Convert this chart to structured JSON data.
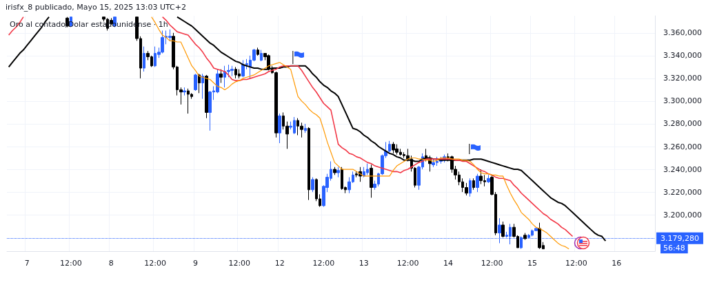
{
  "chart_data": {
    "type": "candlestick",
    "title": "Oro al contado/Dolar estadounidense · 1h",
    "subtitle": "irisfx_8 publicado, Mayo 15, 2025 13:03 UTC+2",
    "categories": [
      null,
      null,
      null,
      null,
      null,
      "7",
      null,
      null,
      null,
      null,
      null,
      null,
      null,
      null,
      null,
      null,
      null,
      "12:00",
      null,
      null,
      null,
      null,
      null,
      null,
      null,
      null,
      null,
      null,
      "8",
      null,
      null,
      null,
      null,
      null,
      null,
      null,
      null,
      null,
      null,
      null,
      "12:00",
      null,
      null,
      null,
      null,
      null,
      null,
      null,
      null,
      null,
      null,
      "9",
      null,
      null,
      null,
      null,
      null,
      null,
      null,
      null,
      null,
      null,
      null,
      "12:00",
      null,
      null,
      null,
      null,
      null,
      null,
      null,
      null,
      null,
      null,
      "12",
      null,
      null,
      null,
      null,
      null,
      null,
      null,
      null,
      null,
      null,
      null,
      "12:00",
      null,
      null,
      null,
      null,
      null,
      null,
      null,
      null,
      null,
      null,
      "13",
      null,
      null,
      null,
      null,
      null,
      null,
      null,
      null,
      null,
      null,
      null,
      "12:00",
      null,
      null,
      null,
      null,
      null,
      null,
      null,
      null,
      null,
      null,
      "14",
      null,
      null,
      null,
      null,
      null,
      null,
      null,
      null,
      null,
      null,
      null,
      "12:00",
      null,
      null,
      null,
      null,
      null,
      null,
      null,
      null,
      null,
      null,
      "15",
      null,
      null,
      null,
      null,
      null,
      null,
      null,
      null,
      null,
      null,
      null,
      "12:00",
      null,
      null,
      null,
      null,
      null,
      null,
      null,
      null,
      null,
      null,
      "16",
      null,
      null,
      null,
      null,
      null,
      null,
      null,
      null,
      null,
      null
    ],
    "ylim": [
      3168,
      3375
    ],
    "yticks": [
      {
        "value": 3200,
        "label": "3.200,000"
      },
      {
        "value": 3220,
        "label": "3.220,000"
      },
      {
        "value": 3240,
        "label": "3.240,000"
      },
      {
        "value": 3260,
        "label": "3.260,000"
      },
      {
        "value": 3280,
        "label": "3.280,000"
      },
      {
        "value": 3300,
        "label": "3.300,000"
      },
      {
        "value": 3320,
        "label": "3.320,000"
      },
      {
        "value": 3340,
        "label": "3.340,000"
      },
      {
        "value": 3360,
        "label": "3.360,000"
      }
    ],
    "grid": true,
    "marker": "none",
    "line_style": "solid",
    "series": [
      {
        "type": "candlestick",
        "ohlc": [
          null,
          null,
          null,
          null,
          null,
          null,
          null,
          null,
          null,
          null,
          null,
          null,
          null,
          null,
          null,
          null,
          [
            3373,
            3374,
            3365,
            3366
          ],
          [
            3366,
            3374,
            3365,
            3374
          ],
          null,
          null,
          null,
          null,
          null,
          null,
          null,
          null,
          [
            3374,
            3374,
            3370,
            3372
          ],
          [
            3372,
            3373,
            3362,
            3364
          ],
          [
            3371,
            3373,
            3367,
            3368
          ],
          [
            3366,
            3374,
            3365,
            3374
          ],
          null,
          null,
          null,
          null,
          null,
          [
            3374,
            3374,
            3353,
            3355
          ],
          [
            3355,
            3357,
            3320,
            3329
          ],
          [
            3329,
            3348,
            3326,
            3342
          ],
          [
            3342,
            3344,
            3336,
            3339
          ],
          [
            3339,
            3340,
            3330,
            3331
          ],
          [
            3331,
            3348,
            3330,
            3342
          ],
          [
            3341,
            3347,
            3338,
            3343
          ],
          [
            3343,
            3362,
            3342,
            3356
          ],
          [
            3356,
            3362,
            3350,
            3357
          ],
          [
            3356,
            3363,
            3353,
            3357
          ],
          [
            3357,
            3360,
            3328,
            3330
          ],
          [
            3330,
            3331,
            3305,
            3310
          ],
          [
            3310,
            3312,
            3297,
            3308
          ],
          [
            3308,
            3312,
            3305,
            3309
          ],
          [
            3309,
            3311,
            3289,
            3306
          ],
          [
            3306,
            3307,
            3302,
            3304
          ],
          [
            3310,
            3324,
            3309,
            3323
          ],
          [
            3323,
            3324,
            3307,
            3316
          ],
          [
            3316,
            3324,
            3302,
            3322
          ],
          [
            3322,
            3323,
            3285,
            3290
          ],
          [
            3290,
            3309,
            3274,
            3308
          ],
          [
            3308,
            3313,
            3301,
            3309
          ],
          [
            3308,
            3328,
            3307,
            3324
          ],
          [
            3324,
            3328,
            3316,
            3321
          ],
          [
            3321,
            3331,
            3312,
            3326
          ],
          [
            3326,
            3332,
            3321,
            3327
          ],
          [
            3327,
            3331,
            3322,
            3328
          ],
          [
            3328,
            3330,
            3320,
            3323
          ],
          [
            3324,
            3328,
            3320,
            3322
          ],
          [
            3322,
            3336,
            3321,
            3332
          ],
          [
            3332,
            3337,
            3328,
            3333
          ],
          [
            3330,
            3340,
            3320,
            3336
          ],
          [
            3336,
            3346,
            3335,
            3345
          ],
          [
            3345,
            3347,
            3340,
            3341
          ],
          [
            3336,
            3345,
            3335,
            3342
          ],
          [
            3342,
            3342,
            3336,
            3339
          ],
          [
            3340,
            3341,
            3327,
            3328
          ],
          [
            3328,
            3331,
            3324,
            3325
          ],
          [
            3325,
            3326,
            3268,
            3272
          ],
          [
            3272,
            3289,
            3263,
            3287
          ],
          [
            3287,
            3290,
            3275,
            3278
          ],
          [
            3278,
            3282,
            3258,
            3271
          ],
          [
            3277,
            3282,
            3275,
            3278
          ],
          [
            3272,
            3286,
            3271,
            3283
          ],
          [
            3283,
            3285,
            3270,
            3278
          ],
          [
            3278,
            3281,
            3268,
            3275
          ],
          [
            3274,
            3280,
            3272,
            3276
          ],
          [
            3276,
            3277,
            3213,
            3222
          ],
          [
            3222,
            3233,
            3220,
            3231
          ],
          [
            3231,
            3232,
            3212,
            3214
          ],
          [
            3214,
            3218,
            3207,
            3208
          ],
          [
            3208,
            3226,
            3207,
            3225
          ],
          [
            3224,
            3236,
            3220,
            3233
          ],
          [
            3232,
            3247,
            3230,
            3240
          ],
          [
            3240,
            3242,
            3235,
            3237
          ],
          [
            3237,
            3242,
            3233,
            3239
          ],
          [
            3240,
            3242,
            3222,
            3223
          ],
          [
            3224,
            3225,
            3219,
            3222
          ],
          [
            3222,
            3233,
            3219,
            3229
          ],
          [
            3229,
            3238,
            3228,
            3235
          ],
          [
            3236,
            3238,
            3233,
            3235
          ],
          [
            3238,
            3242,
            3229,
            3234
          ],
          [
            3234,
            3242,
            3233,
            3238
          ],
          [
            3237,
            3245,
            3235,
            3240
          ],
          [
            3241,
            3244,
            3215,
            3224
          ],
          [
            3224,
            3230,
            3222,
            3227
          ],
          [
            3227,
            3237,
            3225,
            3236
          ],
          [
            3236,
            3253,
            3235,
            3252
          ],
          [
            3252,
            3264,
            3250,
            3256
          ],
          [
            3256,
            3265,
            3255,
            3262
          ],
          [
            3262,
            3264,
            3254,
            3257
          ],
          [
            3258,
            3262,
            3253,
            3255
          ],
          [
            3255,
            3258,
            3252,
            3253
          ],
          [
            3253,
            3255,
            3250,
            3252
          ],
          [
            3252,
            3258,
            3247,
            3249
          ],
          [
            3249,
            3252,
            3238,
            3241
          ],
          [
            3241,
            3242,
            3224,
            3226
          ],
          [
            3226,
            3243,
            3222,
            3242
          ],
          [
            3242,
            3254,
            3240,
            3251
          ],
          [
            3252,
            3258,
            3247,
            3249
          ],
          [
            3249,
            3252,
            3238,
            3245
          ],
          [
            3244,
            3249,
            3242,
            3246
          ],
          [
            3246,
            3251,
            3243,
            3247
          ],
          [
            3247,
            3251,
            3245,
            3248
          ],
          [
            3248,
            3253,
            3246,
            3251
          ],
          [
            3251,
            3254,
            3247,
            3250
          ],
          [
            3251,
            3252,
            3237,
            3240
          ],
          [
            3240,
            3243,
            3231,
            3235
          ],
          [
            3235,
            3238,
            3226,
            3229
          ],
          [
            3229,
            3232,
            3220,
            3224
          ],
          [
            3224,
            3228,
            3217,
            3219
          ],
          [
            3219,
            3232,
            3216,
            3230
          ],
          [
            3230,
            3232,
            3222,
            3224
          ],
          [
            3224,
            3236,
            3220,
            3234
          ],
          [
            3234,
            3240,
            3227,
            3230
          ],
          [
            3230,
            3235,
            3225,
            3229
          ],
          [
            3229,
            3235,
            3228,
            3232
          ],
          [
            3233,
            3235,
            3217,
            3218
          ],
          [
            3218,
            3220,
            3182,
            3184
          ],
          [
            3184,
            3197,
            3175,
            3191
          ],
          [
            3191,
            3194,
            3180,
            3181
          ],
          [
            3181,
            3185,
            3180,
            3182
          ],
          [
            3181,
            3192,
            3174,
            3189
          ],
          [
            3189,
            3192,
            3180,
            3181
          ],
          [
            3181,
            3182,
            3171,
            3171
          ],
          [
            3171,
            3181,
            3170,
            3180
          ],
          [
            3182,
            3184,
            3178,
            3179
          ],
          [
            3180,
            3183,
            3179,
            3182
          ],
          [
            3182,
            3187,
            3181,
            3186
          ],
          [
            3186,
            3189,
            3186,
            3188
          ],
          [
            3188,
            3193,
            3170,
            3171
          ],
          [
            3173,
            3176,
            3170,
            3170
          ],
          null,
          null,
          null,
          null,
          null,
          null,
          null,
          null,
          null,
          null,
          null,
          null,
          null,
          null,
          null,
          null,
          null,
          null,
          null,
          null,
          null,
          null,
          null,
          null,
          null,
          null,
          null,
          null,
          null,
          null
        ],
        "colors": [
          null,
          null,
          null,
          null,
          null,
          null,
          null,
          null,
          null,
          null,
          null,
          null,
          null,
          null,
          null,
          null,
          "#000000",
          "#2962ff",
          null,
          null,
          null,
          null,
          null,
          null,
          null,
          null,
          "#000000",
          "#000000",
          "#000000",
          "#2962ff",
          null,
          null,
          null,
          null,
          null,
          "#000000",
          "#000000",
          "#2962ff",
          "#000000",
          "#000000",
          "#2962ff",
          "#2962ff",
          "#2962ff",
          "#2962ff",
          "#2962ff",
          "#000000",
          "#000000",
          "#000000",
          "#2962ff",
          "#000000",
          "#000000",
          "#2962ff",
          "#000000",
          "#2962ff",
          "#000000",
          "#2962ff",
          "#2962ff",
          "#2962ff",
          "#000000",
          "#2962ff",
          "#2962ff",
          "#2962ff",
          "#000000",
          "#000000",
          "#2962ff",
          "#2962ff",
          "#2962ff",
          "#2962ff",
          "#000000",
          "#2962ff",
          "#000000",
          "#000000",
          "#000000",
          "#000000",
          "#2962ff",
          "#000000",
          "#000000",
          "#2962ff",
          "#2962ff",
          "#000000",
          "#000000",
          "#2962ff",
          "#000000",
          "#2962ff",
          "#000000",
          "#000000",
          "#2962ff",
          "#2962ff",
          "#2962ff",
          "#000000",
          "#2962ff",
          "#000000",
          "#000000",
          "#2962ff",
          "#2962ff",
          "#000000",
          "#000000",
          "#2962ff",
          "#2962ff",
          "#000000",
          "#2962ff",
          "#2962ff",
          "#2962ff",
          "#2962ff",
          "#2962ff",
          "#000000",
          "#000000",
          "#000000",
          "#000000",
          "#000000",
          "#000000",
          "#000000",
          "#2962ff",
          "#2962ff",
          "#000000",
          "#000000",
          "#2962ff",
          "#2962ff",
          "#2962ff",
          "#2962ff",
          "#000000",
          "#000000",
          "#000000",
          "#000000",
          "#000000",
          "#000000",
          "#2962ff",
          "#000000",
          "#2962ff",
          "#000000",
          "#000000",
          "#2962ff",
          "#000000",
          "#000000",
          "#2962ff",
          "#000000",
          "#2962ff",
          "#2962ff",
          "#000000",
          "#000000",
          "#2962ff",
          "#000000",
          "#2962ff",
          "#2962ff",
          "#2962ff",
          "#000000",
          "#000000",
          null,
          null,
          null,
          null,
          null,
          null,
          null,
          null,
          null,
          null,
          null,
          null,
          null,
          null,
          null,
          null,
          null,
          null,
          null,
          null,
          null,
          null,
          null,
          null,
          null,
          null,
          null,
          null,
          null,
          null
        ]
      },
      {
        "type": "line",
        "color": "#000000",
        "values": [
          3330,
          3334,
          3338,
          3342,
          3345,
          3349,
          3353,
          3357,
          3361,
          3365,
          3370,
          3374,
          null,
          null,
          null,
          null,
          null,
          null,
          null,
          null,
          null,
          null,
          null,
          null,
          null,
          null,
          null,
          null,
          null,
          null,
          null,
          null,
          null,
          null,
          null,
          null,
          null,
          null,
          null,
          null,
          null,
          null,
          null,
          null,
          null,
          null,
          3374,
          3372,
          3370,
          3368,
          3366,
          3363,
          3360,
          3357,
          3354,
          3351,
          3349,
          3346,
          3343,
          3341,
          3339,
          3337,
          3335,
          3334,
          3332,
          3331,
          3330,
          3329,
          3329,
          3328,
          3328,
          3328,
          3329,
          3329,
          3329,
          3330,
          3330,
          3331,
          3331,
          3331,
          3331,
          3331,
          3328,
          3324,
          3321,
          3317,
          3314,
          3312,
          3309,
          3307,
          3304,
          3297,
          3290,
          3283,
          3276,
          3275,
          3273,
          3270,
          3268,
          3265,
          3263,
          3260,
          3258,
          3256,
          3254,
          3253,
          3251,
          3250,
          3248,
          3248,
          3248,
          3247,
          3247,
          3249,
          3250,
          3250,
          3249,
          3249,
          3248,
          3248,
          3248,
          3248,
          3248,
          3248,
          3248,
          3248,
          3248,
          3249,
          3249,
          3249,
          3248,
          3247,
          3246,
          3245,
          3244,
          3243,
          3242,
          3241,
          3240,
          3240,
          3239,
          3236,
          3233,
          3230,
          3227,
          3224,
          3221,
          3218,
          3215,
          3213,
          3211,
          3210,
          3208,
          3205,
          3202,
          3199,
          3196,
          3193,
          3190,
          3187,
          3184,
          3182,
          3181,
          3177,
          null,
          null,
          null,
          null,
          null,
          null,
          null,
          null,
          null,
          null,
          null,
          null,
          null
        ]
      },
      {
        "type": "line",
        "color": "#f23645",
        "values": [
          3358,
          3362,
          3365,
          3369,
          3374,
          null,
          null,
          null,
          null,
          null,
          null,
          null,
          null,
          null,
          null,
          null,
          null,
          null,
          null,
          null,
          null,
          null,
          null,
          null,
          null,
          null,
          null,
          null,
          null,
          null,
          null,
          null,
          null,
          null,
          null,
          null,
          null,
          null,
          null,
          null,
          null,
          null,
          3374,
          3371,
          3367,
          3364,
          3361,
          3360,
          3359,
          3358,
          3354,
          3350,
          3347,
          3343,
          3338,
          3334,
          3329,
          3328,
          3327,
          3326,
          3323,
          3319,
          3318,
          3318,
          3319,
          3319,
          3320,
          3321,
          3322,
          3323,
          3324,
          3326,
          3327,
          3328,
          3330,
          3331,
          3331,
          3331,
          3331,
          3331,
          3327,
          3322,
          3317,
          3312,
          3308,
          3303,
          3298,
          3295,
          3292,
          3277,
          3262,
          3259,
          3257,
          3254,
          3253,
          3251,
          3250,
          3248,
          3246,
          3245,
          3243,
          3242,
          3241,
          3240,
          3239,
          3238,
          3238,
          3237,
          3239,
          3240,
          3242,
          3244,
          3246,
          3247,
          3249,
          3249,
          3249,
          3249,
          3249,
          3249,
          3249,
          3249,
          3248,
          3248,
          3247,
          3247,
          3245,
          3243,
          3241,
          3239,
          3238,
          3236,
          3235,
          3233,
          3232,
          3232,
          3231,
          3230,
          3226,
          3223,
          3219,
          3216,
          3213,
          3210,
          3207,
          3204,
          3201,
          3199,
          3196,
          3194,
          3192,
          3189,
          3187,
          3184,
          3181,
          null,
          null,
          null,
          null,
          null,
          null,
          null,
          null,
          null,
          null,
          null,
          null,
          null,
          null,
          null,
          null,
          null,
          null,
          null,
          null,
          null,
          null
        ]
      },
      {
        "type": "line",
        "color": "#ff9800",
        "values": [
          null,
          null,
          null,
          null,
          null,
          null,
          null,
          null,
          null,
          null,
          null,
          null,
          null,
          null,
          null,
          null,
          null,
          null,
          null,
          null,
          null,
          null,
          null,
          null,
          null,
          null,
          null,
          null,
          null,
          null,
          null,
          null,
          null,
          null,
          null,
          null,
          null,
          null,
          null,
          3374,
          3369,
          3363,
          3358,
          3356,
          3353,
          3353,
          3352,
          3352,
          3345,
          3338,
          3331,
          3327,
          3322,
          3321,
          3320,
          3319,
          3316,
          3313,
          3312,
          3310,
          3312,
          3315,
          3317,
          3318,
          3320,
          3321,
          3322,
          3323,
          3325,
          3327,
          3329,
          3331,
          3332,
          3333,
          3334,
          3332,
          3330,
          3328,
          3316,
          3304,
          3300,
          3297,
          3293,
          3290,
          3288,
          3285,
          3275,
          3264,
          3255,
          3246,
          3243,
          3240,
          3240,
          3240,
          3240,
          3238,
          3236,
          3234,
          3234,
          3234,
          3234,
          3234,
          3234,
          3234,
          3234,
          3239,
          3243,
          3245,
          3247,
          3249,
          3250,
          3250,
          3249,
          3249,
          3248,
          3248,
          3247,
          3248,
          3250,
          3250,
          3250,
          3249,
          3249,
          3249,
          3248,
          3248,
          3247,
          3244,
          3240,
          3237,
          3236,
          3236,
          3235,
          3235,
          3234,
          3234,
          3226,
          3219,
          3213,
          3208,
          3202,
          3199,
          3196,
          3192,
          3189,
          3188,
          3186,
          3184,
          3181,
          3178,
          3175,
          3173,
          3172,
          3170,
          null,
          null,
          null,
          null,
          null,
          null,
          null,
          null,
          null,
          null,
          null,
          null,
          null,
          null,
          null,
          null,
          null,
          null,
          null,
          null,
          null,
          null,
          null
        ]
      }
    ],
    "ref_lines": [
      {
        "axis": "y",
        "value": 3179.28,
        "label": "3.179,280",
        "color": "#2962ff",
        "line_style": "dotted"
      }
    ],
    "annotations": [
      "56:48"
    ]
  }
}
